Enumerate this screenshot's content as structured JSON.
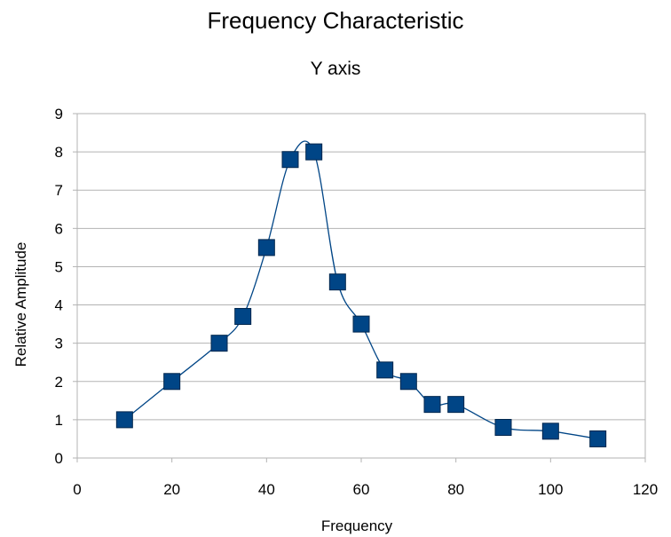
{
  "chart_data": {
    "type": "scatter",
    "title": "Frequency Characteristic",
    "subtitle": "Y axis",
    "xlabel": "Frequency",
    "ylabel": "Relative Amplitude",
    "xlim": [
      0,
      120
    ],
    "ylim": [
      0,
      9
    ],
    "xticks": [
      0,
      20,
      40,
      60,
      80,
      100,
      120
    ],
    "yticks": [
      0,
      1,
      2,
      3,
      4,
      5,
      6,
      7,
      8,
      9
    ],
    "grid": "horizontal",
    "smoothed_line": true,
    "series": [
      {
        "x": [
          10,
          20,
          30,
          35,
          40,
          45,
          50,
          55,
          60,
          65,
          70,
          75,
          80,
          90,
          100,
          110
        ],
        "y": [
          1,
          2,
          3,
          3.7,
          5.5,
          7.8,
          8,
          4.6,
          3.5,
          2.3,
          2,
          1.4,
          1.4,
          0.8,
          0.7,
          0.5
        ]
      }
    ],
    "colors": {
      "marker_fill": "#004586",
      "marker_stroke": "#00264d",
      "line": "#004586",
      "grid": "#b3b3b3",
      "axis": "#b3b3b3"
    }
  }
}
